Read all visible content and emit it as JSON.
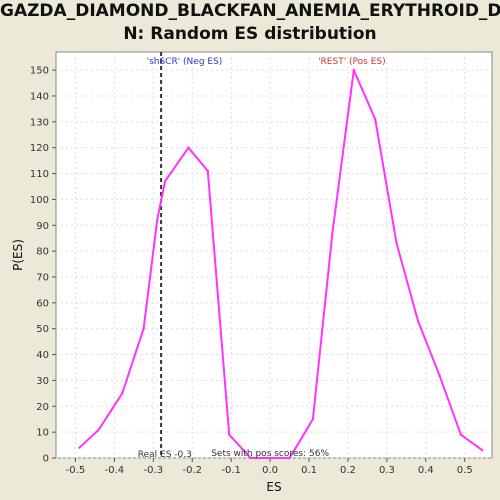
{
  "title_line1": "GAZDA_DIAMOND_BLACKFAN_ANEMIA_ERYTHROID_D",
  "title_line2": "N: Random ES distribution",
  "colors": {
    "curve": "#FF33FF",
    "real_line": "#333333",
    "neg_label": "#3333CC",
    "pos_label": "#CC3333",
    "plot_bg": "#FFFFFF",
    "grid": "#DDDDDD"
  },
  "chart_data": {
    "type": "line",
    "title": "GAZDA_DIAMOND_BLACKFAN_ANEMIA_ERYTHROID_DN: Random ES distribution",
    "xlabel": "ES",
    "ylabel": "P(ES)",
    "xlim": [
      -0.55,
      0.57
    ],
    "ylim": [
      0,
      157
    ],
    "x_ticks": [
      -0.5,
      -0.4,
      -0.3,
      -0.2,
      -0.1,
      0.0,
      0.1,
      0.2,
      0.3,
      0.4,
      0.5
    ],
    "x_tick_labels": [
      "-0.5",
      "-0.4",
      "-0.3",
      "-0.2",
      "-0.1",
      "0.0",
      "0.1",
      "0.2",
      "0.3",
      "0.4",
      "0.5"
    ],
    "y_ticks": [
      0,
      10,
      20,
      30,
      40,
      50,
      60,
      70,
      80,
      90,
      100,
      110,
      120,
      130,
      140,
      150
    ],
    "grid": true,
    "series": [
      {
        "x": [
          -0.49,
          -0.44,
          -0.38,
          -0.325,
          -0.29,
          -0.27,
          -0.21,
          -0.16,
          -0.105,
          -0.05,
          0.0,
          0.05,
          0.11,
          0.16,
          0.215,
          0.27,
          0.325,
          0.38,
          0.435,
          0.49,
          0.545
        ],
        "y": [
          4,
          11,
          25,
          50,
          92,
          107,
          120,
          111,
          9,
          0,
          0,
          0,
          15,
          87,
          150,
          131,
          83,
          53,
          32,
          9,
          3
        ]
      }
    ],
    "real_es": -0.28,
    "real_es_label": "Real ES -0.3",
    "neg_label": "'shSCR' (Neg ES)",
    "pos_label": "'REST' (Pos ES)",
    "pos_scores_label": "Sets with pos scores: 56%"
  }
}
